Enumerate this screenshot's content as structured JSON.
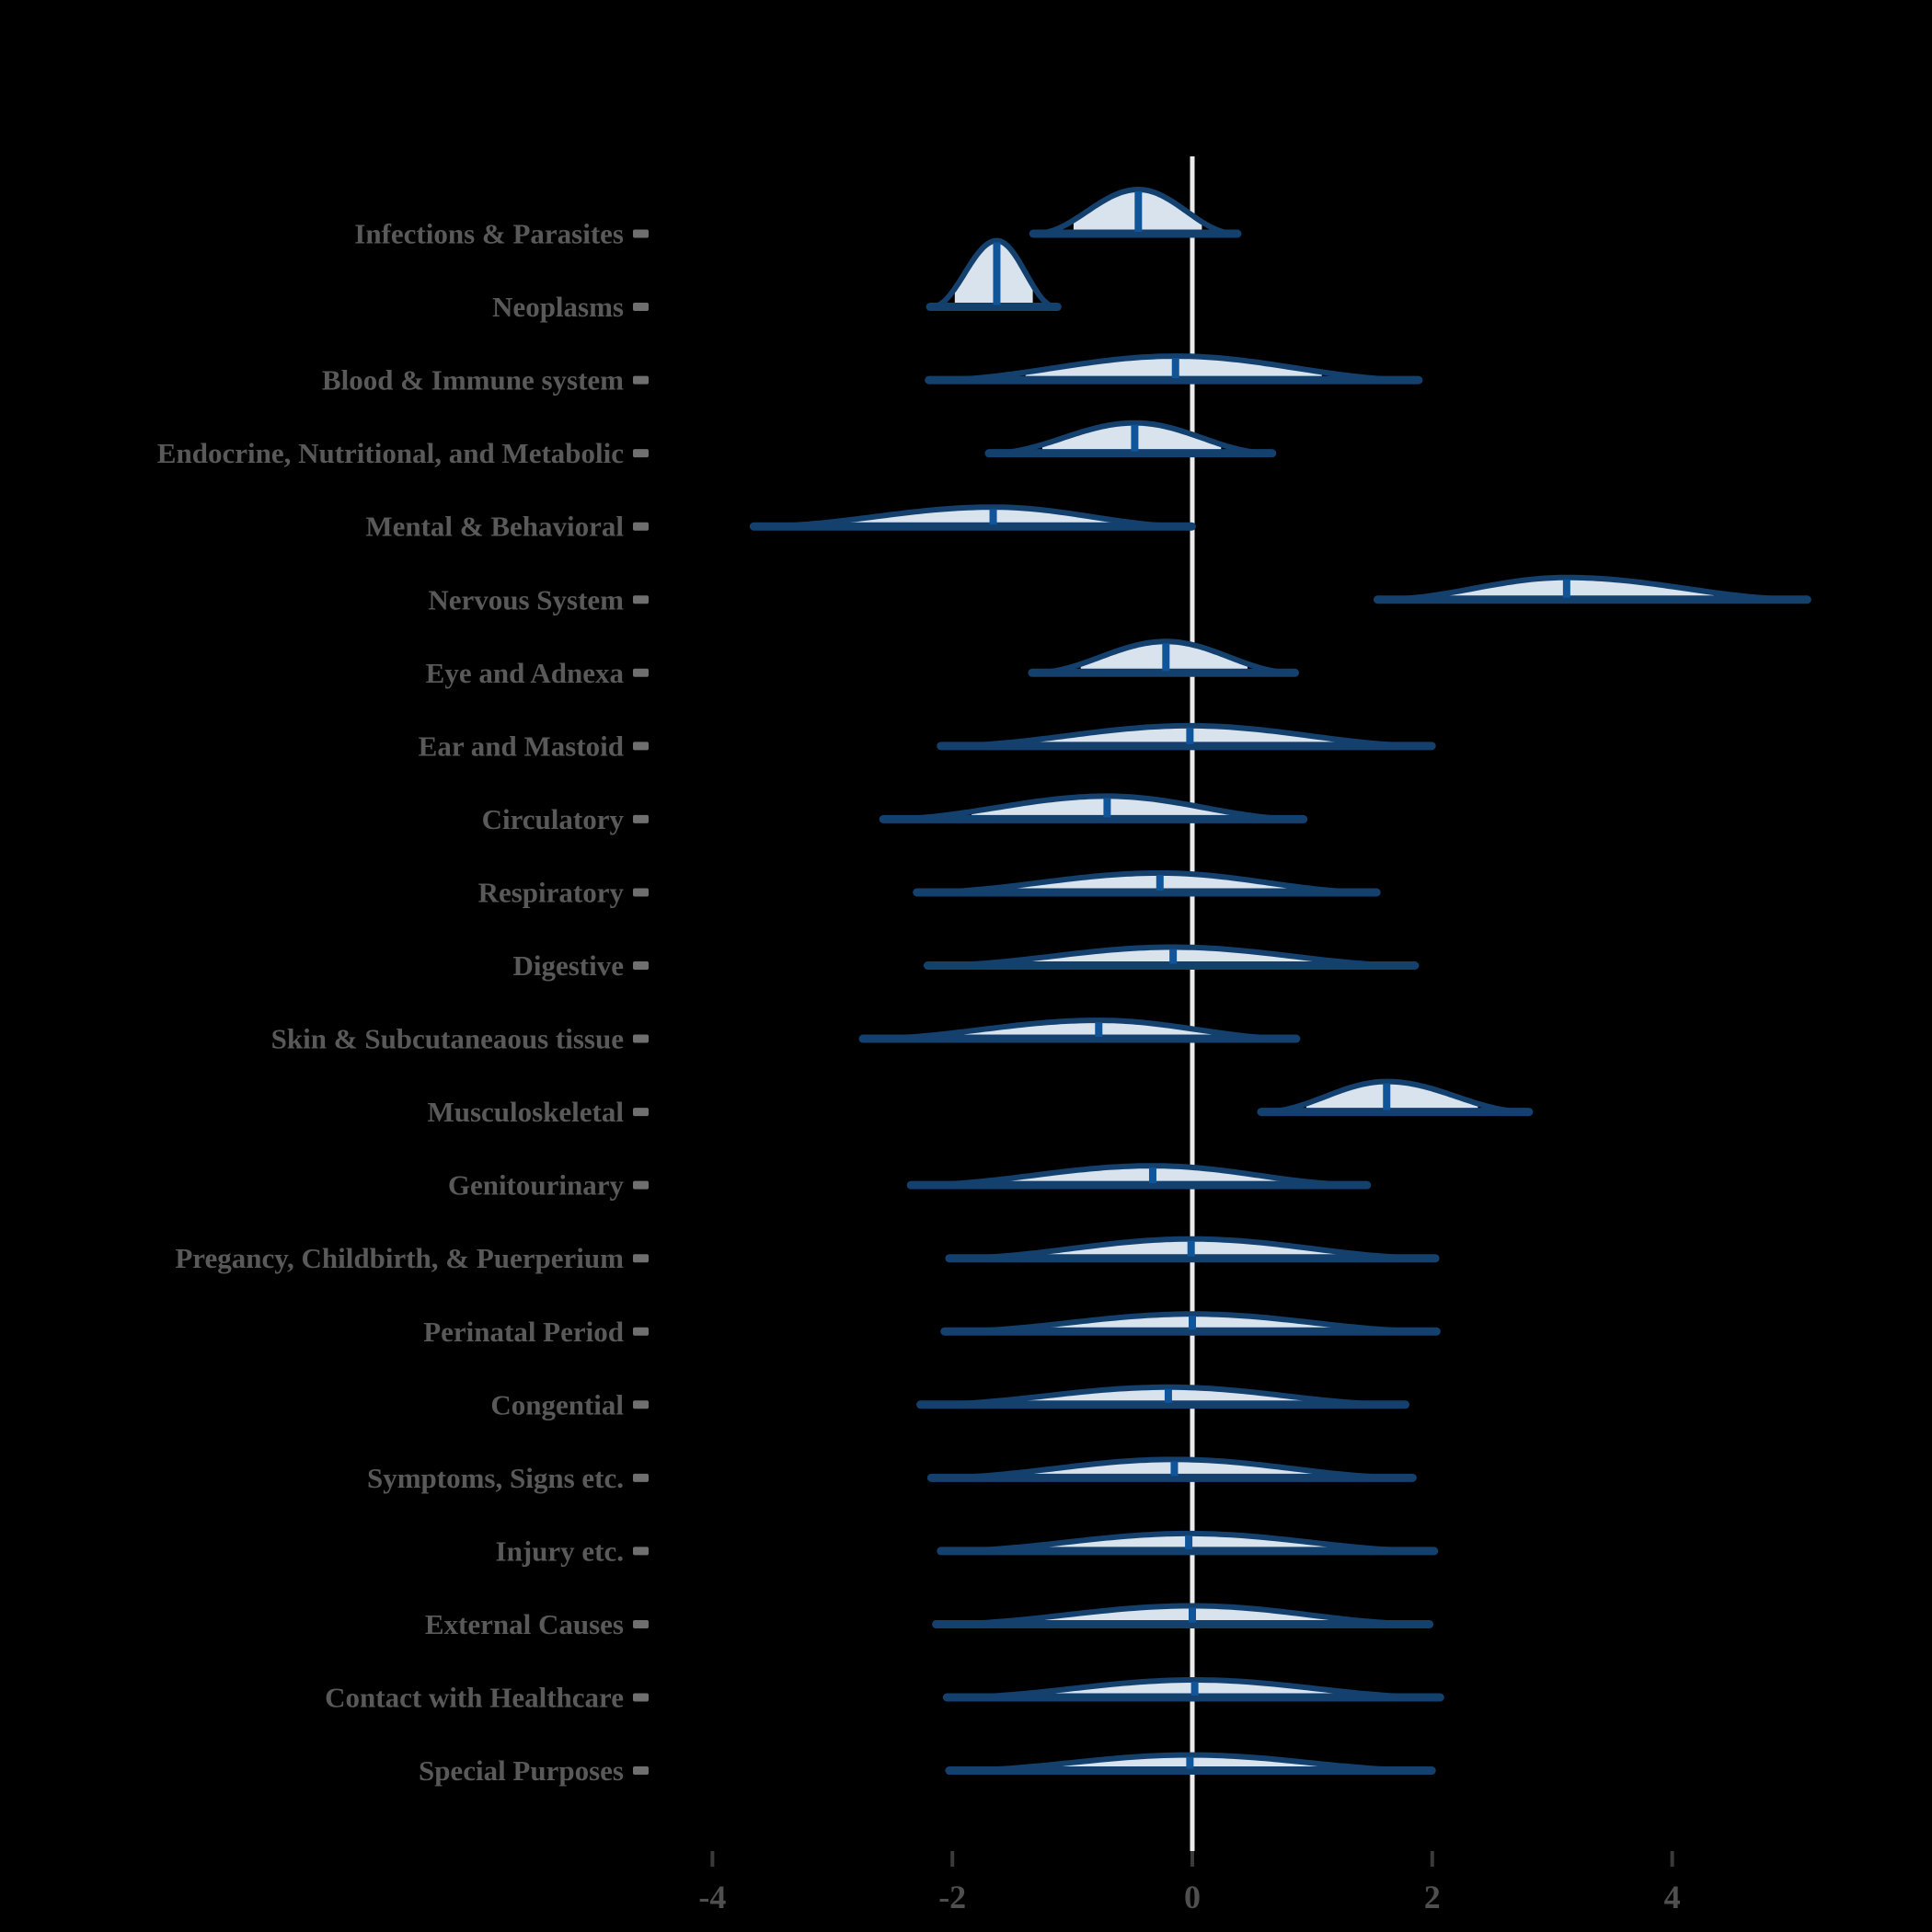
{
  "chart_data": {
    "type": "area",
    "subtype": "ridgeline_density_violins",
    "title": "",
    "xlabel": "",
    "ylabel": "",
    "xlim": [
      -4.6,
      6.2
    ],
    "x_ticks": [
      -4,
      -2,
      0,
      2,
      4
    ],
    "x_tick_labels": [
      "-4",
      "-2",
      "0",
      "2",
      "4"
    ],
    "zero_reference_line": 0,
    "grid": "off",
    "legend": "none",
    "rows": [
      {
        "label": "Infections & Parasites",
        "range": [
          -1.31,
          0.36
        ],
        "fill_range": [
          -0.99,
          0.08
        ],
        "median": -0.45,
        "peak": 48
      },
      {
        "label": "Neoplasms",
        "range": [
          -2.17,
          -1.14
        ],
        "fill_range": [
          -1.98,
          -1.33
        ],
        "median": -1.63,
        "peak": 72
      },
      {
        "label": "Blood & Immune system",
        "range": [
          -2.18,
          1.87
        ],
        "fill_range": [
          -1.39,
          1.08
        ],
        "median": -0.14,
        "peak": 26
      },
      {
        "label": "Endocrine, Nutritional, and Metabolic",
        "range": [
          -1.68,
          0.65
        ],
        "fill_range": [
          -1.25,
          0.24
        ],
        "median": -0.48,
        "peak": 33
      },
      {
        "label": "Mental & Behavioral",
        "range": [
          -3.64,
          -0.02
        ],
        "fill_range": [
          -2.91,
          -0.52
        ],
        "median": -1.66,
        "peak": 21
      },
      {
        "label": "Nervous System",
        "range": [
          1.56,
          5.11
        ],
        "fill_range": [
          2.06,
          4.35
        ],
        "median": 3.12,
        "peak": 24
      },
      {
        "label": "Eye and Adnexa",
        "range": [
          -1.32,
          0.84
        ],
        "fill_range": [
          -0.93,
          0.46
        ],
        "median": -0.22,
        "peak": 34
      },
      {
        "label": "Ear and Mastoid",
        "range": [
          -2.08,
          1.98
        ],
        "fill_range": [
          -1.31,
          1.22
        ],
        "median": -0.02,
        "peak": 22
      },
      {
        "label": "Circulatory",
        "range": [
          -2.56,
          0.91
        ],
        "fill_range": [
          -1.84,
          0.32
        ],
        "median": -0.71,
        "peak": 25
      },
      {
        "label": "Respiratory",
        "range": [
          -2.28,
          1.52
        ],
        "fill_range": [
          -1.46,
          0.96
        ],
        "median": -0.27,
        "peak": 21
      },
      {
        "label": "Digestive",
        "range": [
          -2.19,
          1.84
        ],
        "fill_range": [
          -1.46,
          1.05
        ],
        "median": -0.16,
        "peak": 20
      },
      {
        "label": "Skin & Subcutaneaous tissue",
        "range": [
          -2.73,
          0.85
        ],
        "fill_range": [
          -1.97,
          0.29
        ],
        "median": -0.78,
        "peak": 20
      },
      {
        "label": "Musculoskeletal",
        "range": [
          0.59,
          2.79
        ],
        "fill_range": [
          0.95,
          2.38
        ],
        "median": 1.62,
        "peak": 33
      },
      {
        "label": "Genitourinary",
        "range": [
          -2.33,
          1.44
        ],
        "fill_range": [
          -1.58,
          0.83
        ],
        "median": -0.33,
        "peak": 21
      },
      {
        "label": "Pregancy, Childbirth, & Puerperium",
        "range": [
          -2.01,
          2.01
        ],
        "fill_range": [
          -1.29,
          1.26
        ],
        "median": -0.01,
        "peak": 21
      },
      {
        "label": "Perinatal Period",
        "range": [
          -2.05,
          2.02
        ],
        "fill_range": [
          -1.23,
          1.27
        ],
        "median": 0.0,
        "peak": 19
      },
      {
        "label": "Congential",
        "range": [
          -2.25,
          1.76
        ],
        "fill_range": [
          -1.45,
          1.08
        ],
        "median": -0.2,
        "peak": 19
      },
      {
        "label": "Symptoms, Signs etc.",
        "range": [
          -2.16,
          1.82
        ],
        "fill_range": [
          -1.39,
          1.11
        ],
        "median": -0.15,
        "peak": 20
      },
      {
        "label": "Injury etc.",
        "range": [
          -2.08,
          2.0
        ],
        "fill_range": [
          -1.32,
          1.24
        ],
        "median": -0.03,
        "peak": 19
      },
      {
        "label": "External Causes",
        "range": [
          -2.12,
          1.96
        ],
        "fill_range": [
          -1.3,
          1.25
        ],
        "median": 0.0,
        "peak": 20
      },
      {
        "label": "Contact with Healthcare",
        "range": [
          -2.03,
          2.05
        ],
        "fill_range": [
          -1.28,
          1.27
        ],
        "median": 0.02,
        "peak": 19
      },
      {
        "label": "Special Purposes",
        "range": [
          -2.01,
          1.98
        ],
        "fill_range": [
          -1.25,
          1.24
        ],
        "median": -0.02,
        "peak": 17
      }
    ],
    "colors": {
      "background": "#000000",
      "violin_outline": "#14406e",
      "violin_fill": "#d8e3ee",
      "median_line": "#10559a",
      "zero_line": "#ebebeb",
      "category_label": "#595959",
      "category_tick_dash": "#6f6f6f",
      "axis_tick_mark": "#3a3a3a",
      "axis_tick_label": "#4f4f4f"
    }
  }
}
